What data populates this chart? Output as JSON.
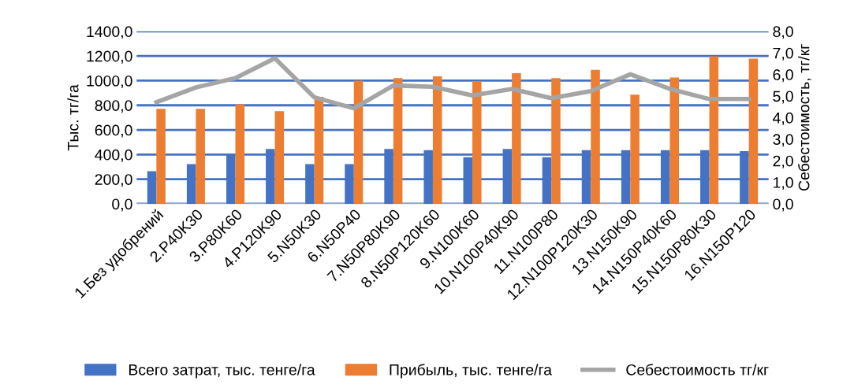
{
  "chart_data": {
    "type": "bar",
    "ylabel": "Тыс. тг/га",
    "y2label": "Себестоимость, тг/кг",
    "categories": [
      "1.Без удобрений",
      "2.P40K30",
      "3.P80K60",
      "4.P120K90",
      "5.N50K30",
      "6.N50P40",
      "7.N50P80K90",
      "8.N50P120K60",
      "9.N100K60",
      "10.N100P40K90",
      "11.N100P80",
      "12.N100P120K30",
      "13.N150K90",
      "14.N150P40K60",
      "15.N150P80K30",
      "16.N150P120"
    ],
    "series": [
      {
        "name": "Всего затрат, тыс. тенге/га",
        "color": "#4472c4",
        "values": [
          265,
          322,
          404,
          445,
          322,
          322,
          445,
          436,
          378,
          445,
          378,
          436,
          436,
          436,
          436,
          428
        ]
      },
      {
        "name": "Прибыль, тыс. тенге/га",
        "color": "#ed7d31",
        "values": [
          771,
          771,
          808,
          752,
          868,
          1000,
          1020,
          1035,
          996,
          1061,
          1020,
          1087,
          886,
          1026,
          1197,
          1178
        ]
      },
      {
        "name": "Себестоимость тг/кг",
        "color": "#a5a5a5",
        "type": "line",
        "axis": "y2",
        "values": [
          4.71,
          5.4,
          5.83,
          6.75,
          4.94,
          4.43,
          5.49,
          5.43,
          5.03,
          5.33,
          4.9,
          5.23,
          6.01,
          5.33,
          4.86,
          4.86
        ]
      }
    ],
    "ylim": [
      0,
      1400
    ],
    "yticks": [
      {
        "value": 0,
        "label": "0,0"
      },
      {
        "value": 200,
        "label": "200,0"
      },
      {
        "value": 400,
        "label": "400,0"
      },
      {
        "value": 600,
        "label": "600,0"
      },
      {
        "value": 800,
        "label": "800,0"
      },
      {
        "value": 1000,
        "label": "1000,0"
      },
      {
        "value": 1200,
        "label": "1200,0"
      },
      {
        "value": 1400,
        "label": "1400,0"
      }
    ],
    "y2lim": [
      0,
      8
    ],
    "y2ticks": [
      {
        "value": 0,
        "label": "0,0"
      },
      {
        "value": 1,
        "label": "1,0"
      },
      {
        "value": 2,
        "label": "2,0"
      },
      {
        "value": 3,
        "label": "3,0"
      },
      {
        "value": 4,
        "label": "4,0"
      },
      {
        "value": 5,
        "label": "5,0"
      },
      {
        "value": 6,
        "label": "6,0"
      },
      {
        "value": 7,
        "label": "7,0"
      },
      {
        "value": 8,
        "label": "8,0"
      }
    ],
    "grid": "y",
    "legend": "bottom",
    "marker": "none"
  }
}
